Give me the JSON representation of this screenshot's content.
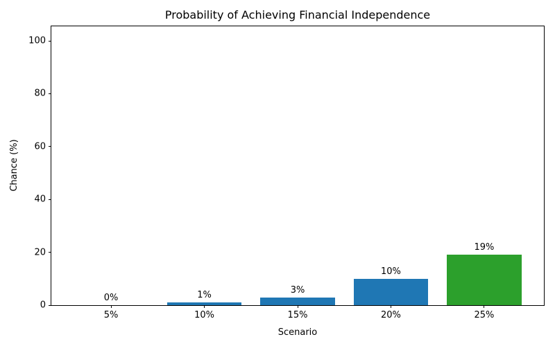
{
  "chart_data": {
    "type": "bar",
    "title": "Probability of Achieving Financial Independence",
    "xlabel": "Scenario",
    "ylabel": "Chance (%)",
    "categories": [
      "5%",
      "10%",
      "15%",
      "20%",
      "25%"
    ],
    "values": [
      0,
      1,
      3,
      10,
      19
    ],
    "bar_labels": [
      "0%",
      "1%",
      "3%",
      "10%",
      "19%"
    ],
    "bar_colors": [
      "#1f77b4",
      "#1f77b4",
      "#1f77b4",
      "#1f77b4",
      "#2ca02c"
    ],
    "yticks": [
      0,
      20,
      40,
      60,
      80,
      100
    ],
    "ytick_labels": [
      "0",
      "20",
      "40",
      "60",
      "80",
      "100"
    ],
    "ylim": [
      0,
      105.5
    ],
    "bar_width_fraction": 0.8,
    "x_edge_margin_units": 0.64,
    "grid": false,
    "legend": "none",
    "colors": {
      "bar_default": "#1f77b4",
      "bar_highlight": "#2ca02c",
      "axis": "#000000",
      "text": "#000000",
      "background": "#ffffff"
    }
  }
}
